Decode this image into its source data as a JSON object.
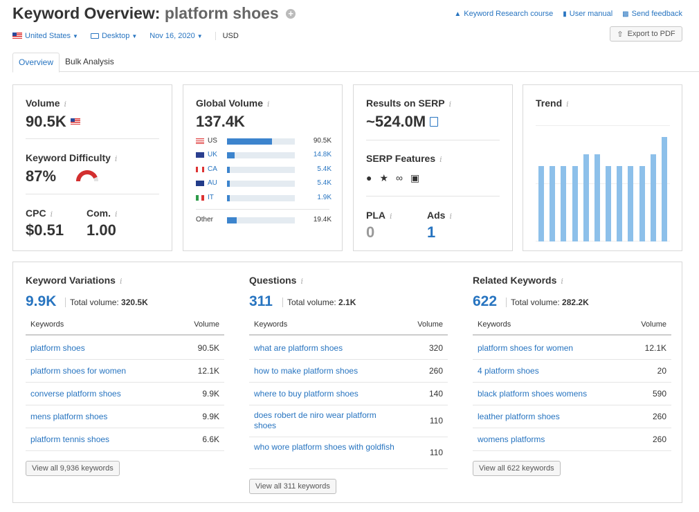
{
  "header": {
    "title_prefix": "Keyword Overview:",
    "keyword": "platform shoes",
    "links": [
      {
        "icon": "graduation-cap-icon",
        "label": "Keyword Research course"
      },
      {
        "icon": "book-icon",
        "label": "User manual"
      },
      {
        "icon": "chat-bubble-icon",
        "label": "Send feedback"
      }
    ],
    "export_label": "Export to PDF"
  },
  "filters": {
    "country": "United States",
    "device": "Desktop",
    "date": "Nov 16, 2020",
    "currency": "USD"
  },
  "tabs": [
    "Overview",
    "Bulk Analysis"
  ],
  "volume": {
    "label": "Volume",
    "value": "90.5K"
  },
  "difficulty": {
    "label": "Keyword Difficulty",
    "value": "87%",
    "percent": 87,
    "color": "#d32f2f"
  },
  "cpc": {
    "label": "CPC",
    "value": "$0.51"
  },
  "com": {
    "label": "Com.",
    "value": "1.00"
  },
  "global_volume": {
    "label": "Global Volume",
    "value": "137.4K",
    "rows": [
      {
        "code": "US",
        "value": "90.5K",
        "share": 0.66
      },
      {
        "code": "UK",
        "value": "14.8K",
        "share": 0.11
      },
      {
        "code": "CA",
        "value": "5.4K",
        "share": 0.04
      },
      {
        "code": "AU",
        "value": "5.4K",
        "share": 0.04
      },
      {
        "code": "IT",
        "value": "1.9K",
        "share": 0.015
      }
    ],
    "other": {
      "label": "Other",
      "value": "19.4K",
      "share": 0.14
    }
  },
  "serp": {
    "results_label": "Results on SERP",
    "results_value": "~524.0M",
    "features_label": "SERP Features",
    "feature_icons": [
      "map-pin-icon",
      "star-icon",
      "link-icon",
      "image-icon"
    ],
    "pla_label": "PLA",
    "pla_value": "0",
    "ads_label": "Ads",
    "ads_value": "1"
  },
  "trend": {
    "label": "Trend",
    "values": [
      0.65,
      0.65,
      0.65,
      0.65,
      0.75,
      0.75,
      0.65,
      0.65,
      0.65,
      0.65,
      0.75,
      0.9
    ],
    "color": "#8dc0ea"
  },
  "keyword_variations": {
    "title": "Keyword Variations",
    "count": "9.9K",
    "total_label": "Total volume:",
    "total_value": "320.5K",
    "col_keywords": "Keywords",
    "col_volume": "Volume",
    "rows": [
      {
        "keyword": "platform shoes",
        "volume": "90.5K"
      },
      {
        "keyword": "platform shoes for women",
        "volume": "12.1K"
      },
      {
        "keyword": "converse platform shoes",
        "volume": "9.9K"
      },
      {
        "keyword": "mens platform shoes",
        "volume": "9.9K"
      },
      {
        "keyword": "platform tennis shoes",
        "volume": "6.6K"
      }
    ],
    "view_all": "View all 9,936 keywords"
  },
  "questions": {
    "title": "Questions",
    "count": "311",
    "total_label": "Total volume:",
    "total_value": "2.1K",
    "col_keywords": "Keywords",
    "col_volume": "Volume",
    "rows": [
      {
        "keyword": "what are platform shoes",
        "volume": "320"
      },
      {
        "keyword": "how to make platform shoes",
        "volume": "260"
      },
      {
        "keyword": "where to buy platform shoes",
        "volume": "140"
      },
      {
        "keyword": "does robert de niro wear platform shoes",
        "volume": "110"
      },
      {
        "keyword": "who wore platform shoes with goldfish",
        "volume": "110"
      }
    ],
    "view_all": "View all 311 keywords"
  },
  "related_keywords": {
    "title": "Related Keywords",
    "count": "622",
    "total_label": "Total volume:",
    "total_value": "282.2K",
    "col_keywords": "Keywords",
    "col_volume": "Volume",
    "rows": [
      {
        "keyword": "platform shoes for women",
        "volume": "12.1K"
      },
      {
        "keyword": "4 platform shoes",
        "volume": "20"
      },
      {
        "keyword": "black platform shoes womens",
        "volume": "590"
      },
      {
        "keyword": "leather platform shoes",
        "volume": "260"
      },
      {
        "keyword": "womens platforms",
        "volume": "260"
      }
    ],
    "view_all": "View all 622 keywords"
  }
}
